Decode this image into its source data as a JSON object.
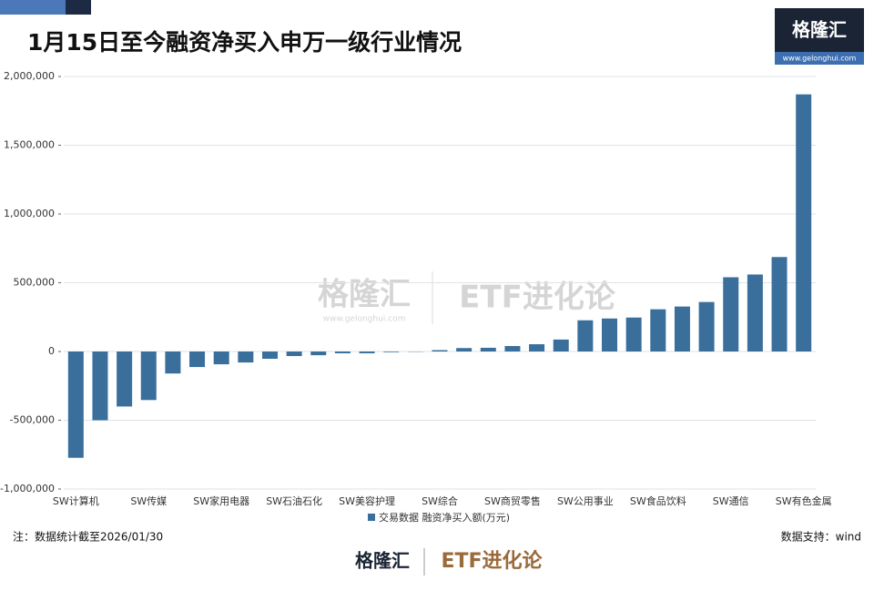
{
  "chart_data": {
    "type": "bar",
    "title": "1月15日至今融资净买入申万一级行业情况",
    "logo": {
      "brand": "格隆汇",
      "url": "www.gelonghui.com"
    },
    "watermark": {
      "brand": "格隆汇",
      "url": "www.gelonghui.com",
      "channel": "ETF进化论"
    },
    "categories": [
      "SW计算机",
      null,
      null,
      "SW传媒",
      null,
      null,
      "SW家用电器",
      null,
      null,
      "SW石油石化",
      null,
      null,
      "SW美容护理",
      null,
      null,
      "SW综合",
      null,
      null,
      "SW商贸零售",
      null,
      null,
      "SW公用事业",
      null,
      null,
      "SW食品饮料",
      null,
      null,
      "SW通信",
      null,
      null,
      "SW有色金属"
    ],
    "series": [
      {
        "name": "交易数据 融资净买入额(万元)",
        "color": "#3a6f9c",
        "values": [
          -773000,
          -500000,
          -400000,
          -353000,
          -160000,
          -113000,
          -93000,
          -80000,
          -53000,
          -33000,
          -27000,
          -13000,
          -13000,
          -5000,
          -2000,
          10000,
          25000,
          27000,
          40000,
          53000,
          87000,
          227000,
          240000,
          247000,
          307000,
          327000,
          360000,
          540000,
          560000,
          687000,
          1870000
        ]
      }
    ],
    "ylim": [
      -1000000,
      2000000
    ],
    "yticks": [
      {
        "value": -1000000,
        "label": "-1,000,000"
      },
      {
        "value": -500000,
        "label": "-500,000"
      },
      0,
      {
        "value": 500000,
        "label": "500,000"
      },
      {
        "value": 1000000,
        "label": "1,000,000"
      },
      {
        "value": 1500000,
        "label": "1,500,000"
      },
      {
        "value": 2000000,
        "label": "2,000,000"
      }
    ],
    "grid": true,
    "note": "注：数据统计截至2026/01/30",
    "source": "数据支持：wind",
    "footer": {
      "brand": "格隆汇",
      "channel": "ETF进化论"
    }
  }
}
